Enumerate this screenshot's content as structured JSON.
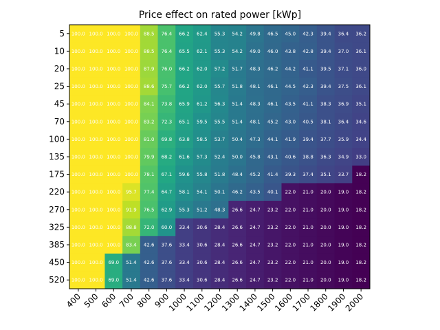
{
  "chart_data": {
    "type": "heatmap",
    "title": "Price effect on rated power [kWp]",
    "xlabel": "",
    "ylabel": "",
    "x_categories": [
      "400",
      "500",
      "600",
      "700",
      "800",
      "900",
      "1000",
      "1100",
      "1200",
      "1300",
      "1400",
      "1500",
      "1600",
      "1700",
      "1800",
      "1900",
      "2000"
    ],
    "y_categories": [
      "5",
      "10",
      "20",
      "25",
      "45",
      "70",
      "100",
      "135",
      "175",
      "220",
      "270",
      "325",
      "385",
      "450",
      "520"
    ],
    "values": [
      [
        100.0,
        100.0,
        100.0,
        100.0,
        88.5,
        76.4,
        66.2,
        62.4,
        55.3,
        54.2,
        49.8,
        46.5,
        45.0,
        42.3,
        39.4,
        36.4,
        36.2
      ],
      [
        100.0,
        100.0,
        100.0,
        100.0,
        88.5,
        76.4,
        65.5,
        62.1,
        55.3,
        54.2,
        49.0,
        46.0,
        43.8,
        42.8,
        39.4,
        37.0,
        36.1
      ],
      [
        100.0,
        100.0,
        100.0,
        100.0,
        87.9,
        76.0,
        66.2,
        62.0,
        57.2,
        51.7,
        48.3,
        46.2,
        44.2,
        41.1,
        39.5,
        37.1,
        36.0
      ],
      [
        100.0,
        100.0,
        100.0,
        100.0,
        88.6,
        75.7,
        66.2,
        62.0,
        55.7,
        51.8,
        48.1,
        46.1,
        44.5,
        42.3,
        39.4,
        37.5,
        36.1
      ],
      [
        100.0,
        100.0,
        100.0,
        100.0,
        84.1,
        73.8,
        65.9,
        61.2,
        56.3,
        51.4,
        48.3,
        46.1,
        43.5,
        41.1,
        38.3,
        36.9,
        35.1
      ],
      [
        100.0,
        100.0,
        100.0,
        100.0,
        83.2,
        72.3,
        65.1,
        59.5,
        55.5,
        51.4,
        48.1,
        45.2,
        43.0,
        40.5,
        38.1,
        36.4,
        34.6
      ],
      [
        100.0,
        100.0,
        100.0,
        100.0,
        81.0,
        69.8,
        63.8,
        58.5,
        53.7,
        50.4,
        47.3,
        44.1,
        41.9,
        39.4,
        37.7,
        35.9,
        34.4
      ],
      [
        100.0,
        100.0,
        100.0,
        100.0,
        79.9,
        68.2,
        61.6,
        57.3,
        52.4,
        50.0,
        45.8,
        43.1,
        40.6,
        38.8,
        36.3,
        34.9,
        33.0
      ],
      [
        100.0,
        100.0,
        100.0,
        100.0,
        78.1,
        67.1,
        59.6,
        55.8,
        51.8,
        48.4,
        45.2,
        41.4,
        39.3,
        37.4,
        35.1,
        33.7,
        18.2
      ],
      [
        100.0,
        100.0,
        100.0,
        95.7,
        77.4,
        64.7,
        58.1,
        54.1,
        50.1,
        46.2,
        43.5,
        40.1,
        22.0,
        21.0,
        20.0,
        19.0,
        18.2
      ],
      [
        100.0,
        100.0,
        100.0,
        91.9,
        76.5,
        62.9,
        55.3,
        51.2,
        48.3,
        26.6,
        24.7,
        23.2,
        22.0,
        21.0,
        20.0,
        19.0,
        18.2
      ],
      [
        100.0,
        100.0,
        100.0,
        88.8,
        72.0,
        60.0,
        33.4,
        30.6,
        28.4,
        26.6,
        24.7,
        23.2,
        22.0,
        21.0,
        20.0,
        19.0,
        18.2
      ],
      [
        100.0,
        100.0,
        100.0,
        83.4,
        42.6,
        37.6,
        33.4,
        30.6,
        28.4,
        26.6,
        24.7,
        23.2,
        22.0,
        21.0,
        20.0,
        19.0,
        18.2
      ],
      [
        100.0,
        100.0,
        69.0,
        51.4,
        42.6,
        37.6,
        33.4,
        30.6,
        28.4,
        26.6,
        24.7,
        23.2,
        22.0,
        21.0,
        20.0,
        19.0,
        18.2
      ],
      [
        100.0,
        100.0,
        69.0,
        51.4,
        42.6,
        37.6,
        33.4,
        30.6,
        28.4,
        26.6,
        24.7,
        23.2,
        22.0,
        21.0,
        20.0,
        19.0,
        18.2
      ]
    ],
    "colormap": "viridis",
    "value_range": [
      18.2,
      100.0
    ],
    "cell_label_color": "#ffffff",
    "grid": false
  }
}
